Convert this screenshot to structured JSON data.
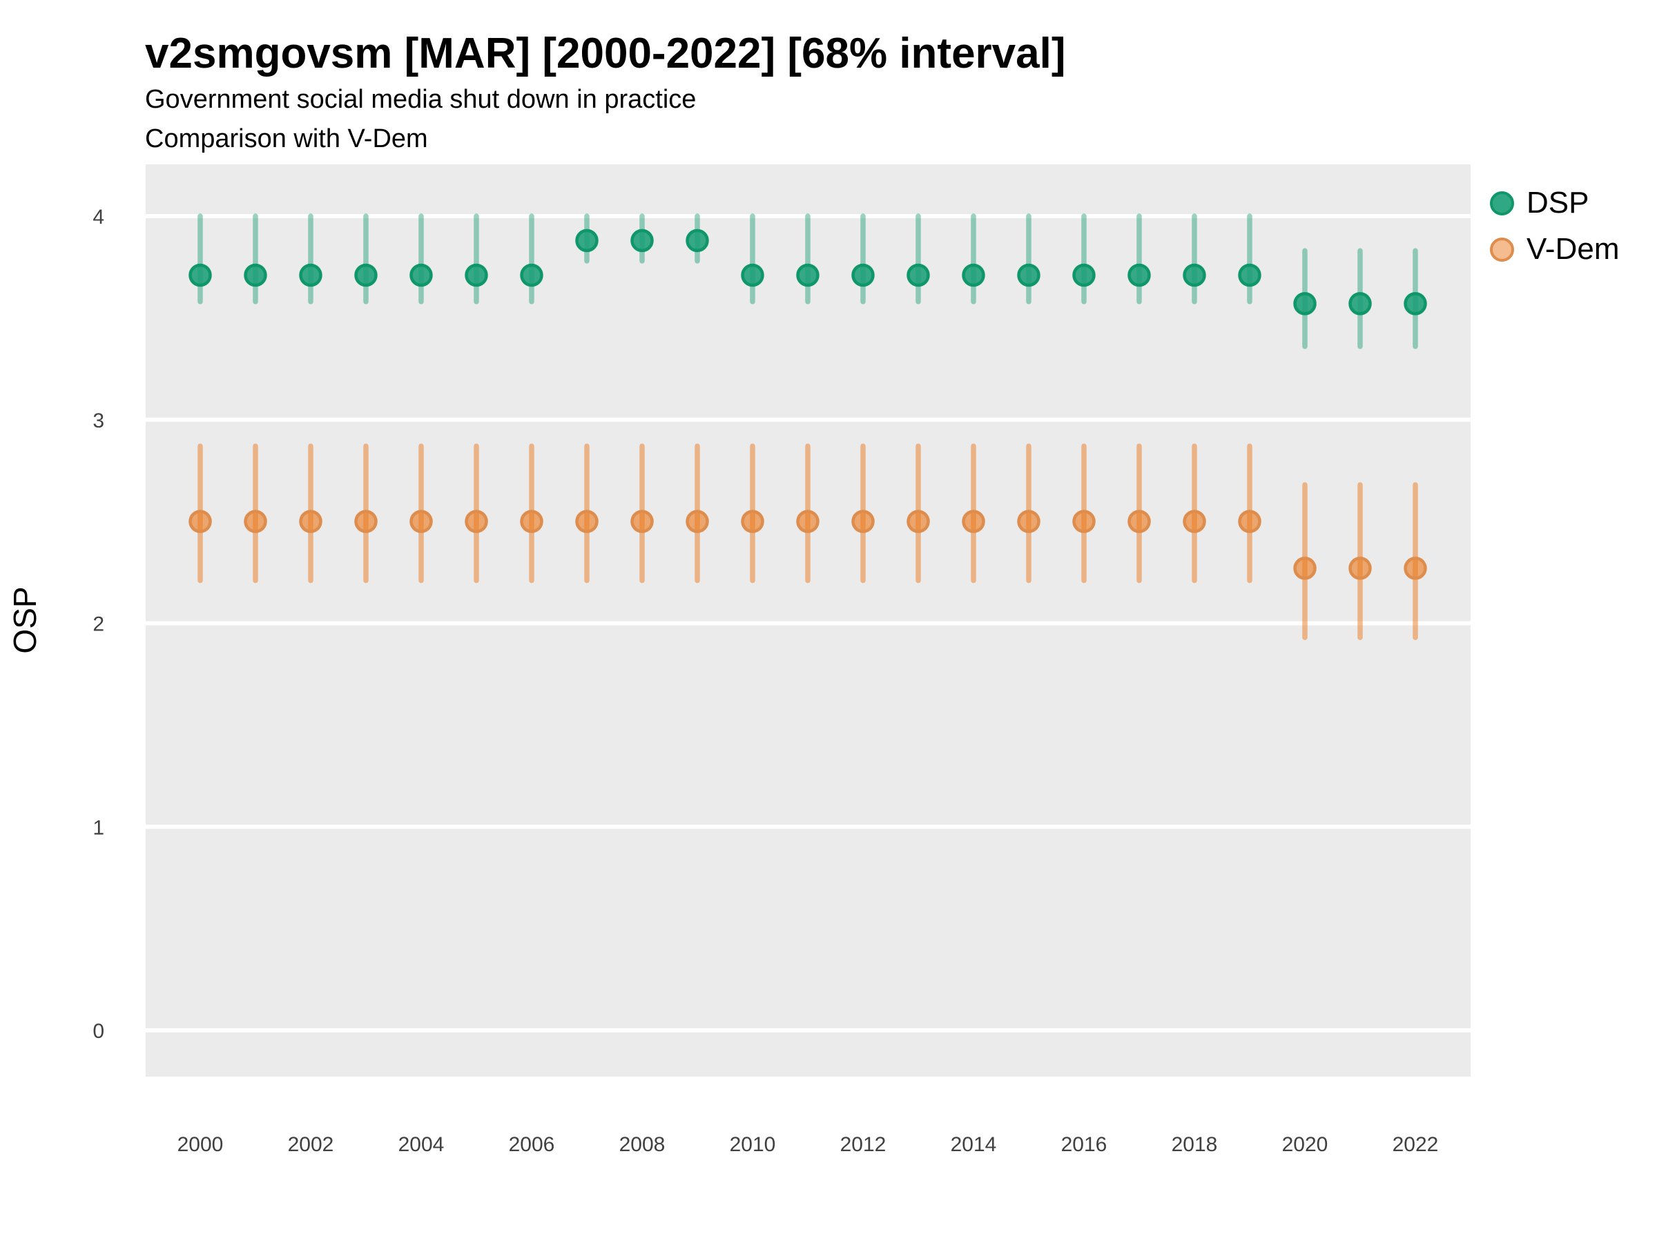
{
  "header": {
    "title": "v2smgovsm [MAR] [2000-2022] [68% interval]",
    "subtitle_line1": "Government social media shut down in practice",
    "subtitle_line2": "Comparison with V-Dem"
  },
  "axes": {
    "y_title": "OSP",
    "y_ticks": [
      4,
      3,
      2,
      1,
      0
    ],
    "x_ticks": [
      2000,
      2002,
      2004,
      2006,
      2008,
      2010,
      2012,
      2014,
      2016,
      2018,
      2020,
      2022
    ]
  },
  "legend": {
    "position": "right",
    "items": [
      {
        "label": "DSP",
        "swatch_bg": "rgba(27,158,119,0.9)",
        "swatch_border": "#0F9669"
      },
      {
        "label": "V-Dem",
        "swatch_bg": "rgba(235,122,33,0.5)",
        "swatch_border": "#DE8D4D"
      }
    ]
  },
  "chart_data": {
    "type": "pointrange-scatter",
    "title": "v2smgovsm [MAR] [2000-2022] [68% interval]",
    "subtitle": [
      "Government social media shut down in practice",
      "Comparison with V-Dem"
    ],
    "interval": "68%",
    "xlabel": "",
    "ylabel": "OSP",
    "ylim": [
      -0.23,
      4.25
    ],
    "grid": "major-horizontal-white",
    "panel_background": "#EBEBEB",
    "legend_position": "right",
    "x": [
      2000,
      2001,
      2002,
      2003,
      2004,
      2005,
      2006,
      2007,
      2008,
      2009,
      2010,
      2011,
      2012,
      2013,
      2014,
      2015,
      2016,
      2017,
      2018,
      2019,
      2020,
      2021,
      2022
    ],
    "series": [
      {
        "name": "DSP",
        "color": "#1B9E77",
        "band_color": "rgba(27,158,119,0.45)",
        "point_fill": "rgba(27,158,119,0.88)",
        "point_stroke": "#0F9669",
        "mid": [
          3.71,
          3.71,
          3.71,
          3.71,
          3.71,
          3.71,
          3.71,
          3.88,
          3.88,
          3.88,
          3.71,
          3.71,
          3.71,
          3.71,
          3.71,
          3.71,
          3.71,
          3.71,
          3.71,
          3.71,
          3.57,
          3.57,
          3.57
        ],
        "lo": [
          3.58,
          3.58,
          3.58,
          3.58,
          3.58,
          3.58,
          3.58,
          3.78,
          3.78,
          3.78,
          3.58,
          3.58,
          3.58,
          3.58,
          3.58,
          3.58,
          3.58,
          3.58,
          3.58,
          3.58,
          3.36,
          3.36,
          3.36
        ],
        "hi": [
          4.0,
          4.0,
          4.0,
          4.0,
          4.0,
          4.0,
          4.0,
          4.0,
          4.0,
          4.0,
          4.0,
          4.0,
          4.0,
          4.0,
          4.0,
          4.0,
          4.0,
          4.0,
          4.0,
          4.0,
          3.83,
          3.83,
          3.83
        ]
      },
      {
        "name": "V-Dem",
        "color": "#EB7A21",
        "band_color": "rgba(235,122,33,0.5)",
        "point_fill": "rgba(235,122,33,0.62)",
        "point_stroke": "#DE8D4D",
        "mid": [
          2.5,
          2.5,
          2.5,
          2.5,
          2.5,
          2.5,
          2.5,
          2.5,
          2.5,
          2.5,
          2.5,
          2.5,
          2.5,
          2.5,
          2.5,
          2.5,
          2.5,
          2.5,
          2.5,
          2.5,
          2.27,
          2.27,
          2.27
        ],
        "lo": [
          2.21,
          2.21,
          2.21,
          2.21,
          2.21,
          2.21,
          2.21,
          2.21,
          2.21,
          2.21,
          2.21,
          2.21,
          2.21,
          2.21,
          2.21,
          2.21,
          2.21,
          2.21,
          2.21,
          2.21,
          1.93,
          1.93,
          1.93
        ],
        "hi": [
          2.87,
          2.87,
          2.87,
          2.87,
          2.87,
          2.87,
          2.87,
          2.87,
          2.87,
          2.87,
          2.87,
          2.87,
          2.87,
          2.87,
          2.87,
          2.87,
          2.87,
          2.87,
          2.87,
          2.87,
          2.68,
          2.68,
          2.68
        ]
      }
    ]
  }
}
